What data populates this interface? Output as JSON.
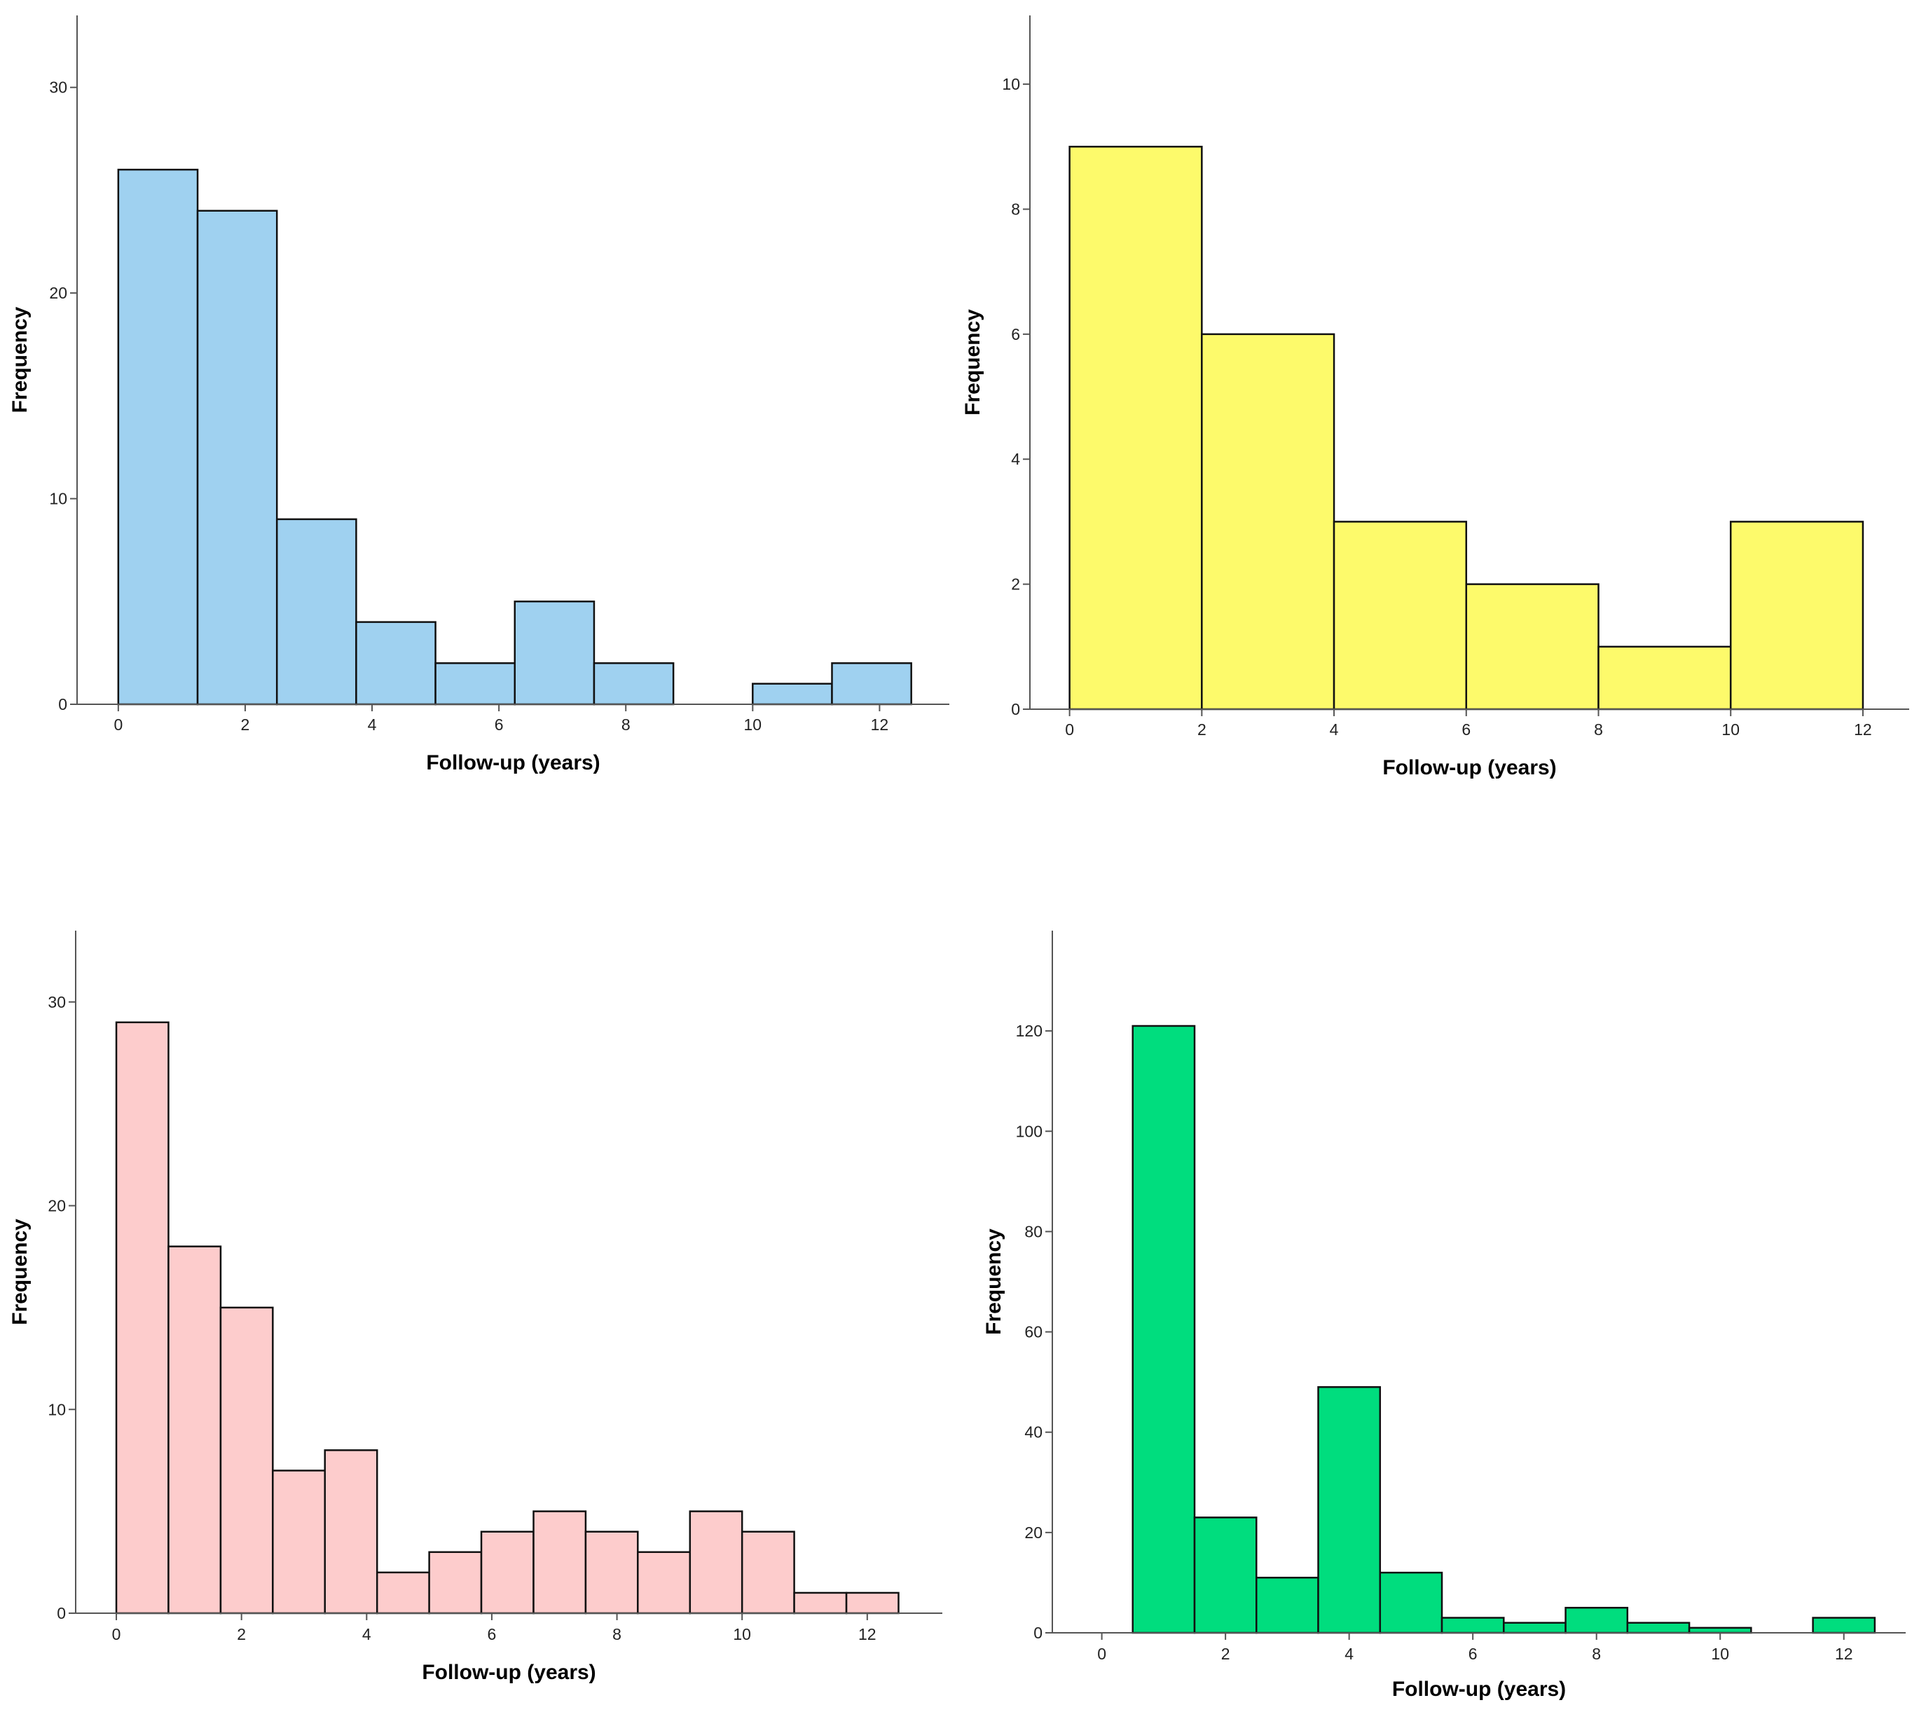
{
  "chart_data": [
    {
      "type": "bar",
      "panel": "top-left",
      "title": "",
      "xlabel": "Follow-up (years)",
      "ylabel": "Frequency",
      "color": "#9fd1f0",
      "xlim": [
        -0.65,
        13.1
      ],
      "ylim": [
        0,
        33.5
      ],
      "xticks": [
        0,
        2,
        4,
        6,
        8,
        10,
        12
      ],
      "yticks": [
        0,
        10,
        20,
        30
      ],
      "bins": [
        {
          "start": 0,
          "end": 1.25,
          "value": 26
        },
        {
          "start": 1.25,
          "end": 2.5,
          "value": 24
        },
        {
          "start": 2.5,
          "end": 3.75,
          "value": 9
        },
        {
          "start": 3.75,
          "end": 5.0,
          "value": 4
        },
        {
          "start": 5.0,
          "end": 6.25,
          "value": 2
        },
        {
          "start": 6.25,
          "end": 7.5,
          "value": 5
        },
        {
          "start": 7.5,
          "end": 8.75,
          "value": 2
        },
        {
          "start": 8.75,
          "end": 10.0,
          "value": 0
        },
        {
          "start": 10.0,
          "end": 11.25,
          "value": 1
        },
        {
          "start": 11.25,
          "end": 12.5,
          "value": 2
        }
      ]
    },
    {
      "type": "bar",
      "panel": "top-right",
      "title": "",
      "xlabel": "Follow-up (years)",
      "ylabel": "Frequency",
      "color": "#fdfa6b",
      "xlim": [
        -0.6,
        12.7
      ],
      "ylim": [
        0,
        11.1
      ],
      "xticks": [
        0,
        2,
        4,
        6,
        8,
        10,
        12
      ],
      "yticks": [
        0,
        2,
        4,
        6,
        8,
        10
      ],
      "bins": [
        {
          "start": 0,
          "end": 2,
          "value": 9
        },
        {
          "start": 2,
          "end": 4,
          "value": 6
        },
        {
          "start": 4,
          "end": 6,
          "value": 3
        },
        {
          "start": 6,
          "end": 8,
          "value": 2
        },
        {
          "start": 8,
          "end": 10,
          "value": 1
        },
        {
          "start": 10,
          "end": 12,
          "value": 3
        }
      ]
    },
    {
      "type": "bar",
      "panel": "bottom-left",
      "title": "",
      "xlabel": "Follow-up (years)",
      "ylabel": "Frequency",
      "color": "#fdcccc",
      "xlim": [
        -0.65,
        13.2
      ],
      "ylim": [
        0,
        33.5
      ],
      "xticks": [
        0,
        2,
        4,
        6,
        8,
        10,
        12
      ],
      "yticks": [
        0,
        10,
        20,
        30
      ],
      "bins": [
        {
          "start": 0,
          "end": 0.833,
          "value": 29
        },
        {
          "start": 0.833,
          "end": 1.667,
          "value": 18
        },
        {
          "start": 1.667,
          "end": 2.5,
          "value": 15
        },
        {
          "start": 2.5,
          "end": 3.333,
          "value": 7
        },
        {
          "start": 3.333,
          "end": 4.167,
          "value": 8
        },
        {
          "start": 4.167,
          "end": 5.0,
          "value": 2
        },
        {
          "start": 5.0,
          "end": 5.833,
          "value": 3
        },
        {
          "start": 5.833,
          "end": 6.667,
          "value": 4
        },
        {
          "start": 6.667,
          "end": 7.5,
          "value": 5
        },
        {
          "start": 7.5,
          "end": 8.333,
          "value": 4
        },
        {
          "start": 8.333,
          "end": 9.167,
          "value": 3
        },
        {
          "start": 9.167,
          "end": 10.0,
          "value": 5
        },
        {
          "start": 10.0,
          "end": 10.833,
          "value": 4
        },
        {
          "start": 10.833,
          "end": 11.667,
          "value": 1
        },
        {
          "start": 11.667,
          "end": 12.5,
          "value": 1
        }
      ]
    },
    {
      "type": "bar",
      "panel": "bottom-right",
      "title": "",
      "xlabel": "Follow-up (years)",
      "ylabel": "Frequency",
      "color": "#00dd7e",
      "xlim": [
        -0.8,
        13.0
      ],
      "ylim": [
        0,
        140
      ],
      "xticks": [
        0,
        2,
        4,
        6,
        8,
        10,
        12
      ],
      "yticks": [
        0,
        20,
        40,
        60,
        80,
        100,
        120
      ],
      "bins": [
        {
          "start": 0.5,
          "end": 1.5,
          "value": 121
        },
        {
          "start": 1.5,
          "end": 2.5,
          "value": 23
        },
        {
          "start": 2.5,
          "end": 3.5,
          "value": 11
        },
        {
          "start": 3.5,
          "end": 4.5,
          "value": 49
        },
        {
          "start": 4.5,
          "end": 5.5,
          "value": 12
        },
        {
          "start": 5.5,
          "end": 6.5,
          "value": 3
        },
        {
          "start": 6.5,
          "end": 7.5,
          "value": 2
        },
        {
          "start": 7.5,
          "end": 8.5,
          "value": 5
        },
        {
          "start": 8.5,
          "end": 9.5,
          "value": 2
        },
        {
          "start": 9.5,
          "end": 10.5,
          "value": 1
        },
        {
          "start": 10.5,
          "end": 11.5,
          "value": 0
        },
        {
          "start": 11.5,
          "end": 12.5,
          "value": 3
        }
      ]
    }
  ]
}
